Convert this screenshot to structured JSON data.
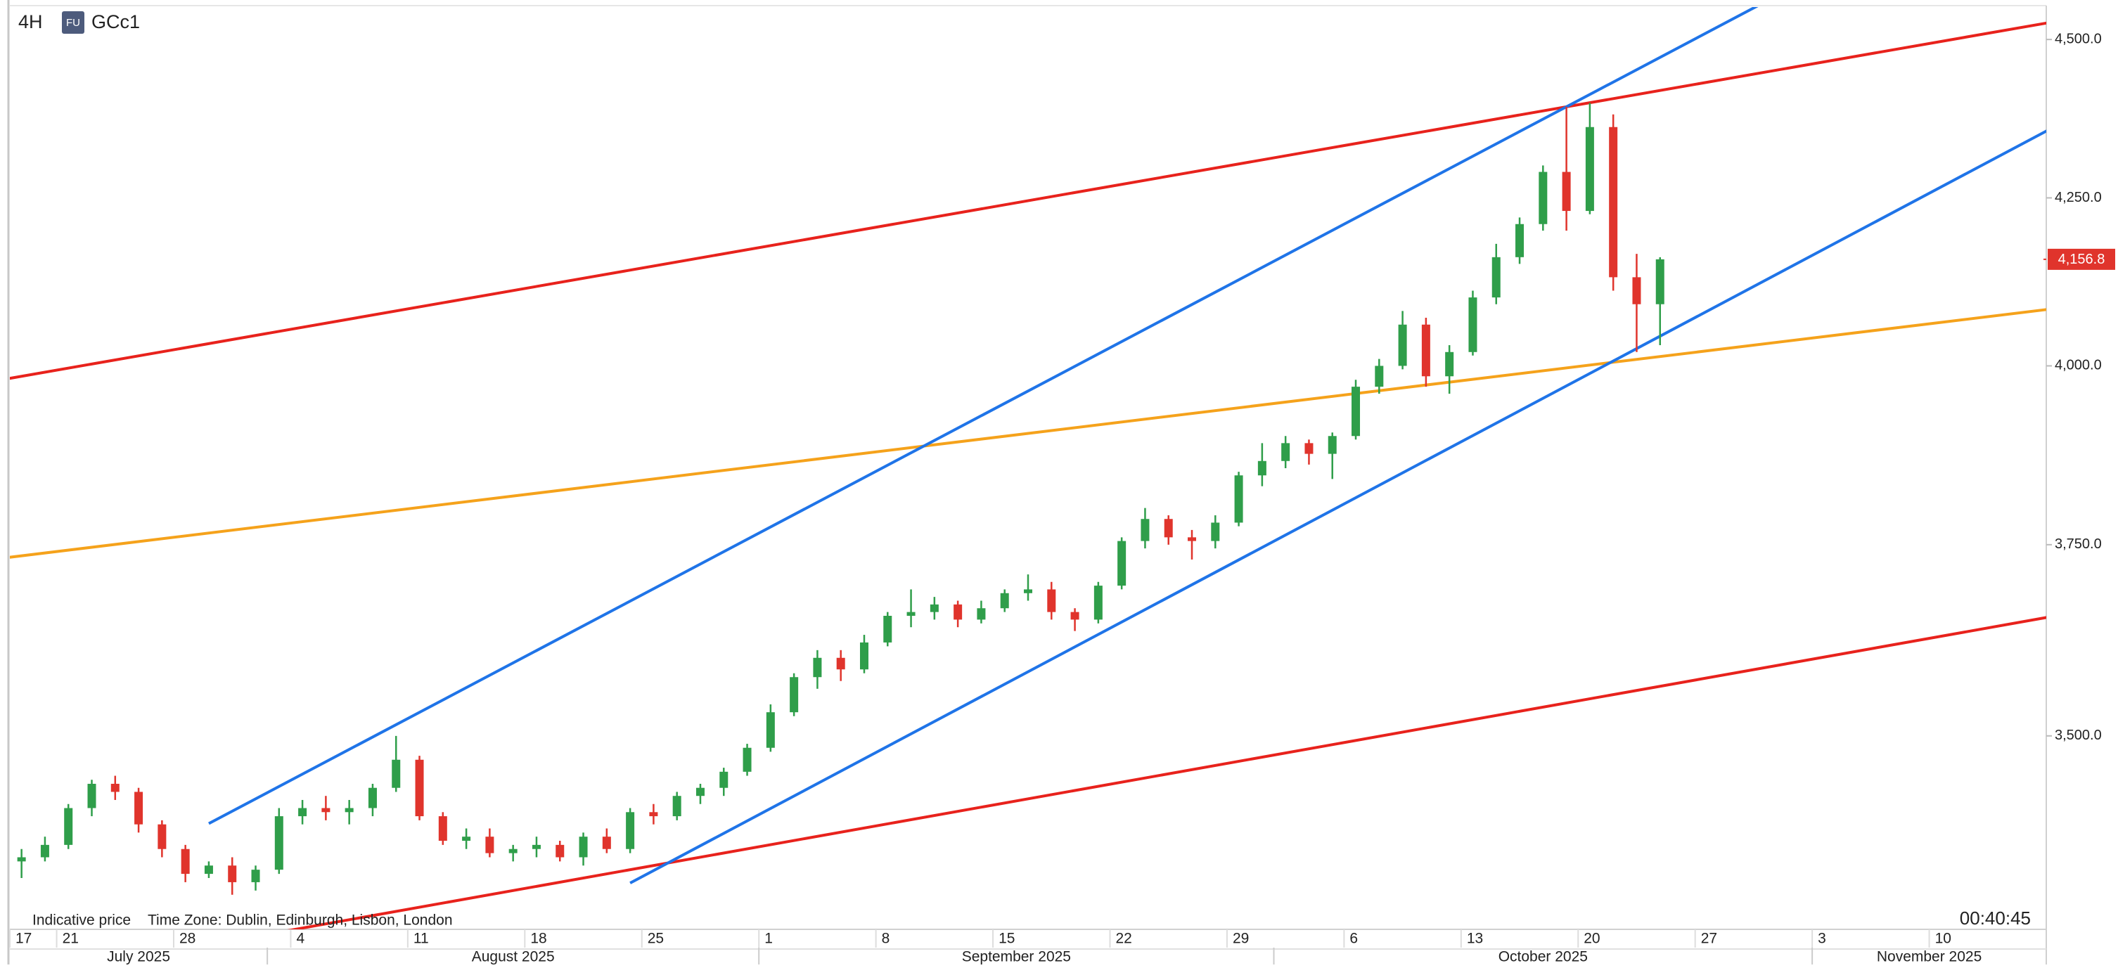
{
  "chart_data": {
    "type": "candlestick",
    "title": "GCc1",
    "interval": "4H",
    "badge": "FU",
    "note": "Indicative price",
    "timezone": "Time Zone: Dublin, Edinburgh, Lisbon, London",
    "countdown": "00:40:45",
    "log_y": true,
    "up_color": "#2f9e4a",
    "down_color": "#e0342c",
    "ylim": [
      3264,
      4553
    ],
    "yticks": [
      {
        "value": 3500,
        "label": "3,500.0"
      },
      {
        "value": 3750,
        "label": "3,750.0"
      },
      {
        "value": 4000,
        "label": "4,000.0"
      },
      {
        "value": 4250,
        "label": "4,250.0"
      },
      {
        "value": 4500,
        "label": "4,500.0"
      }
    ],
    "xlim": [
      "2025-07-17",
      "2025-11-14"
    ],
    "xticks": [
      {
        "value": "2025-07-17",
        "label": "17"
      },
      {
        "value": "2025-07-21",
        "label": "21"
      },
      {
        "value": "2025-07-28",
        "label": "28"
      },
      {
        "value": "2025-08-04",
        "label": "4"
      },
      {
        "value": "2025-08-11",
        "label": "11"
      },
      {
        "value": "2025-08-18",
        "label": "18"
      },
      {
        "value": "2025-08-25",
        "label": "25"
      },
      {
        "value": "2025-09-01",
        "label": "1"
      },
      {
        "value": "2025-09-08",
        "label": "8"
      },
      {
        "value": "2025-09-15",
        "label": "15"
      },
      {
        "value": "2025-09-22",
        "label": "22"
      },
      {
        "value": "2025-09-29",
        "label": "29"
      },
      {
        "value": "2025-10-06",
        "label": "6"
      },
      {
        "value": "2025-10-13",
        "label": "13"
      },
      {
        "value": "2025-10-20",
        "label": "20"
      },
      {
        "value": "2025-10-27",
        "label": "27"
      },
      {
        "value": "2025-11-03",
        "label": "3"
      },
      {
        "value": "2025-11-10",
        "label": "10"
      }
    ],
    "months": [
      {
        "value": "2025-07-01",
        "label": "July 2025"
      },
      {
        "value": "2025-08-01",
        "label": "August 2025"
      },
      {
        "value": "2025-09-01",
        "label": "September 2025"
      },
      {
        "value": "2025-10-01",
        "label": "October 2025"
      },
      {
        "value": "2025-11-01",
        "label": "November 2025"
      }
    ],
    "last_price": {
      "value": 4156.8,
      "label": "4,156.8",
      "color": "#e0342c"
    },
    "x": [
      "2025-07-17",
      "2025-07-18",
      "2025-07-21",
      "2025-07-22",
      "2025-07-23",
      "2025-07-24",
      "2025-07-25",
      "2025-07-28",
      "2025-07-29",
      "2025-07-30",
      "2025-07-31",
      "2025-08-01",
      "2025-08-04",
      "2025-08-05",
      "2025-08-06",
      "2025-08-07",
      "2025-08-08",
      "2025-08-11",
      "2025-08-12",
      "2025-08-13",
      "2025-08-14",
      "2025-08-15",
      "2025-08-18",
      "2025-08-19",
      "2025-08-20",
      "2025-08-21",
      "2025-08-22",
      "2025-08-25",
      "2025-08-26",
      "2025-08-27",
      "2025-08-28",
      "2025-08-29",
      "2025-09-01",
      "2025-09-02",
      "2025-09-03",
      "2025-09-04",
      "2025-09-05",
      "2025-09-08",
      "2025-09-09",
      "2025-09-10",
      "2025-09-11",
      "2025-09-12",
      "2025-09-15",
      "2025-09-16",
      "2025-09-17",
      "2025-09-18",
      "2025-09-19",
      "2025-09-22",
      "2025-09-23",
      "2025-09-24",
      "2025-09-25",
      "2025-09-26",
      "2025-09-29",
      "2025-09-30",
      "2025-10-01",
      "2025-10-02",
      "2025-10-03",
      "2025-10-06",
      "2025-10-07",
      "2025-10-08",
      "2025-10-09",
      "2025-10-10",
      "2025-10-13",
      "2025-10-14",
      "2025-10-15",
      "2025-10-16",
      "2025-10-17",
      "2025-10-20",
      "2025-10-21",
      "2025-10-22",
      "2025-10-23"
    ],
    "open": [
      3345,
      3350,
      3365,
      3410,
      3440,
      3430,
      3390,
      3360,
      3330,
      3340,
      3320,
      3335,
      3400,
      3410,
      3405,
      3410,
      3435,
      3470,
      3400,
      3370,
      3375,
      3355,
      3360,
      3365,
      3350,
      3375,
      3360,
      3405,
      3400,
      3425,
      3435,
      3455,
      3485,
      3530,
      3575,
      3600,
      3585,
      3620,
      3655,
      3660,
      3670,
      3650,
      3665,
      3685,
      3690,
      3660,
      3650,
      3695,
      3755,
      3785,
      3760,
      3755,
      3780,
      3845,
      3865,
      3890,
      3875,
      3900,
      3970,
      4000,
      4060,
      3985,
      4020,
      4100,
      4160,
      4210,
      4290,
      4230,
      4360,
      4130,
      4090
    ],
    "high": [
      3360,
      3375,
      3415,
      3445,
      3450,
      3435,
      3395,
      3365,
      3345,
      3350,
      3340,
      3410,
      3420,
      3425,
      3420,
      3440,
      3500,
      3475,
      3405,
      3385,
      3385,
      3365,
      3375,
      3370,
      3380,
      3385,
      3410,
      3415,
      3430,
      3440,
      3460,
      3490,
      3540,
      3580,
      3610,
      3610,
      3630,
      3660,
      3690,
      3680,
      3675,
      3675,
      3690,
      3710,
      3700,
      3665,
      3700,
      3760,
      3800,
      3790,
      3770,
      3790,
      3850,
      3890,
      3900,
      3895,
      3905,
      3980,
      4010,
      4080,
      4070,
      4030,
      4110,
      4180,
      4220,
      4300,
      4392,
      4398,
      4380,
      4165,
      4160
    ],
    "low": [
      3325,
      3345,
      3360,
      3400,
      3420,
      3380,
      3350,
      3320,
      3325,
      3305,
      3310,
      3330,
      3390,
      3395,
      3390,
      3400,
      3430,
      3395,
      3365,
      3360,
      3350,
      3345,
      3350,
      3345,
      3340,
      3355,
      3355,
      3390,
      3395,
      3415,
      3425,
      3450,
      3480,
      3525,
      3560,
      3570,
      3580,
      3615,
      3640,
      3650,
      3640,
      3645,
      3660,
      3675,
      3650,
      3635,
      3645,
      3690,
      3745,
      3750,
      3730,
      3745,
      3775,
      3830,
      3855,
      3860,
      3840,
      3895,
      3960,
      3995,
      3970,
      3960,
      4015,
      4090,
      4150,
      4200,
      4200,
      4225,
      4110,
      4020,
      4030
    ],
    "close": [
      3350,
      3365,
      3410,
      3440,
      3430,
      3390,
      3360,
      3330,
      3340,
      3320,
      3335,
      3400,
      3410,
      3405,
      3410,
      3435,
      3470,
      3400,
      3370,
      3375,
      3355,
      3360,
      3365,
      3350,
      3375,
      3360,
      3405,
      3400,
      3425,
      3435,
      3455,
      3485,
      3530,
      3575,
      3600,
      3585,
      3620,
      3655,
      3660,
      3670,
      3650,
      3665,
      3685,
      3690,
      3660,
      3650,
      3695,
      3755,
      3785,
      3760,
      3755,
      3780,
      3845,
      3865,
      3890,
      3875,
      3900,
      3970,
      4000,
      4060,
      3985,
      4020,
      4100,
      4160,
      4210,
      4290,
      4230,
      4360,
      4130,
      4090,
      4156.8
    ],
    "lines": [
      {
        "color": "#e8221c",
        "extend": "both",
        "points": [
          [
            "2025-07-17",
            3985
          ],
          [
            "2025-10-17",
            4392
          ]
        ]
      },
      {
        "color": "#e8221c",
        "extend": "both",
        "points": [
          [
            "2025-08-20",
            3325
          ],
          [
            "2025-11-14",
            3650
          ]
        ]
      },
      {
        "color": "#f5a21b",
        "extend": "both",
        "points": [
          [
            "2025-07-17",
            3735
          ],
          [
            "2025-11-14",
            4080
          ]
        ]
      },
      {
        "color": "#1f74e8",
        "extend": "right",
        "points": [
          [
            "2025-07-29",
            3391
          ],
          [
            "2025-10-17",
            4392
          ]
        ]
      },
      {
        "color": "#1f74e8",
        "extend": "right",
        "points": [
          [
            "2025-08-22",
            3319
          ],
          [
            "2025-10-22",
            4025
          ]
        ]
      }
    ]
  }
}
